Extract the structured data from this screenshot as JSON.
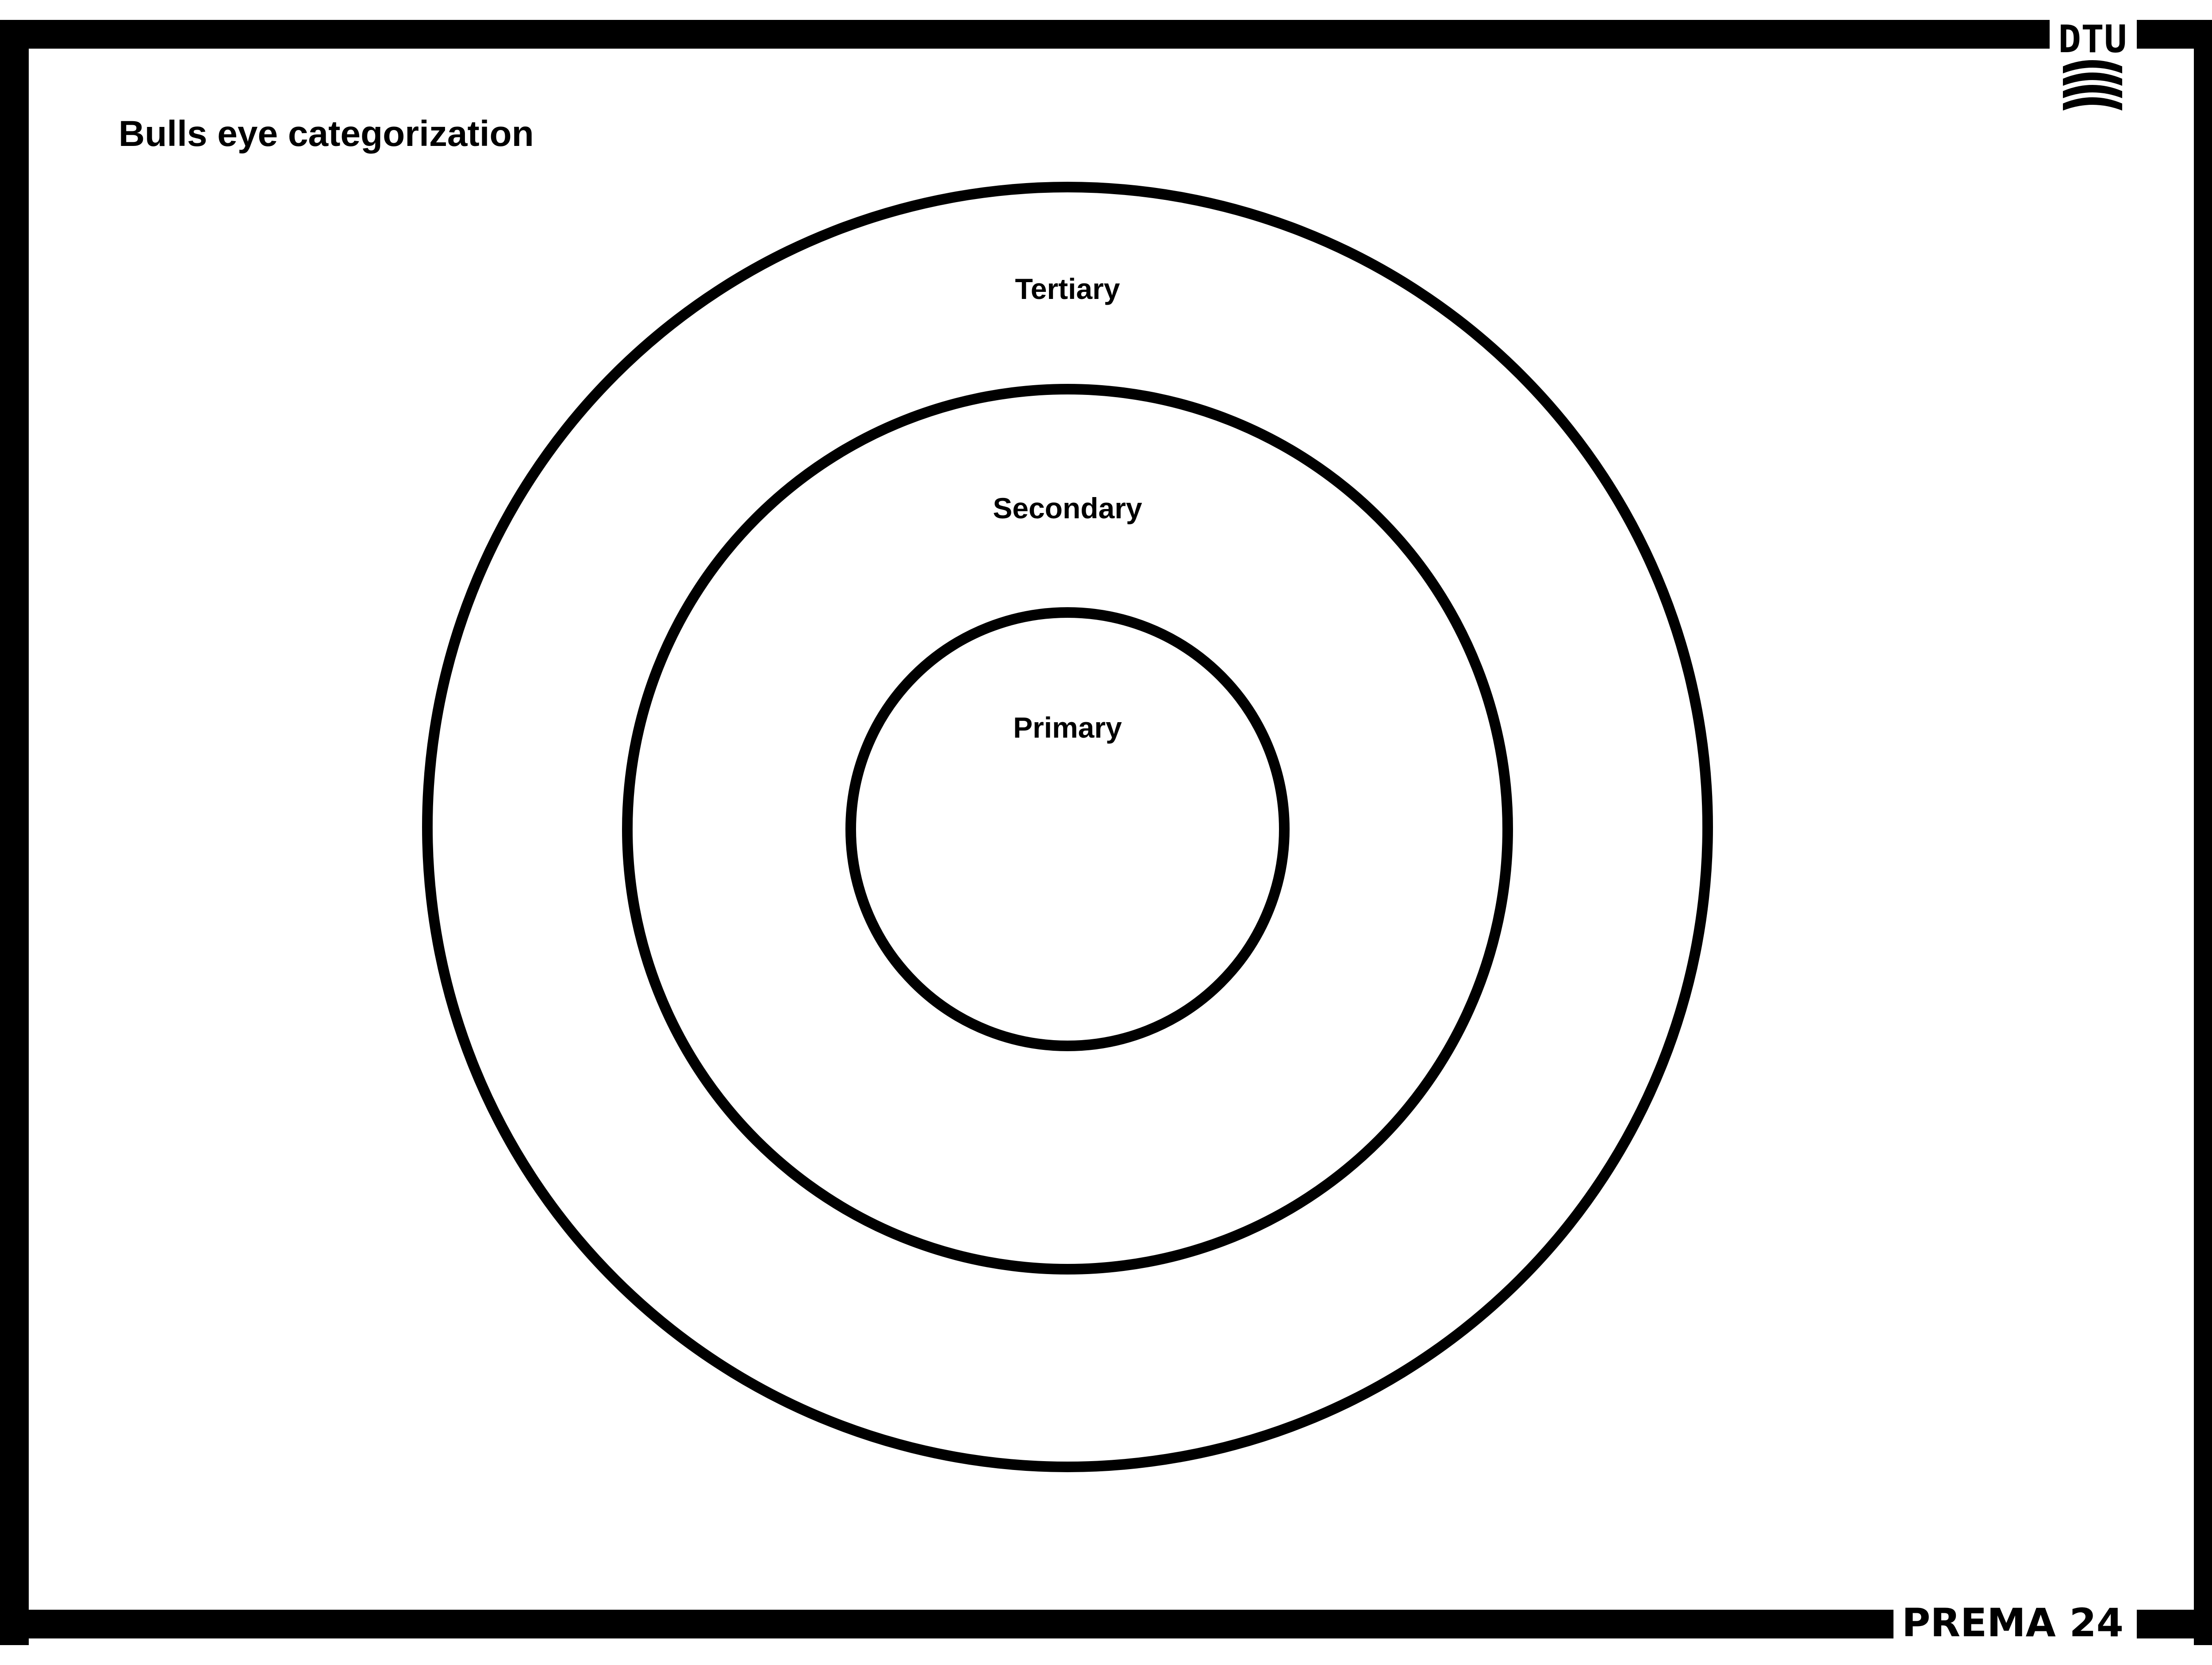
{
  "title": "Bulls eye categorization",
  "logo": {
    "text": "DTU",
    "icon": "dtu-wave-logo-icon"
  },
  "footer": {
    "brand": "PREMA 24"
  },
  "diagram": {
    "type": "concentric-rings",
    "rings": [
      {
        "label": "Primary"
      },
      {
        "label": "Secondary"
      },
      {
        "label": "Tertiary"
      }
    ]
  },
  "colors": {
    "ink": "#000000",
    "background": "#ffffff"
  }
}
